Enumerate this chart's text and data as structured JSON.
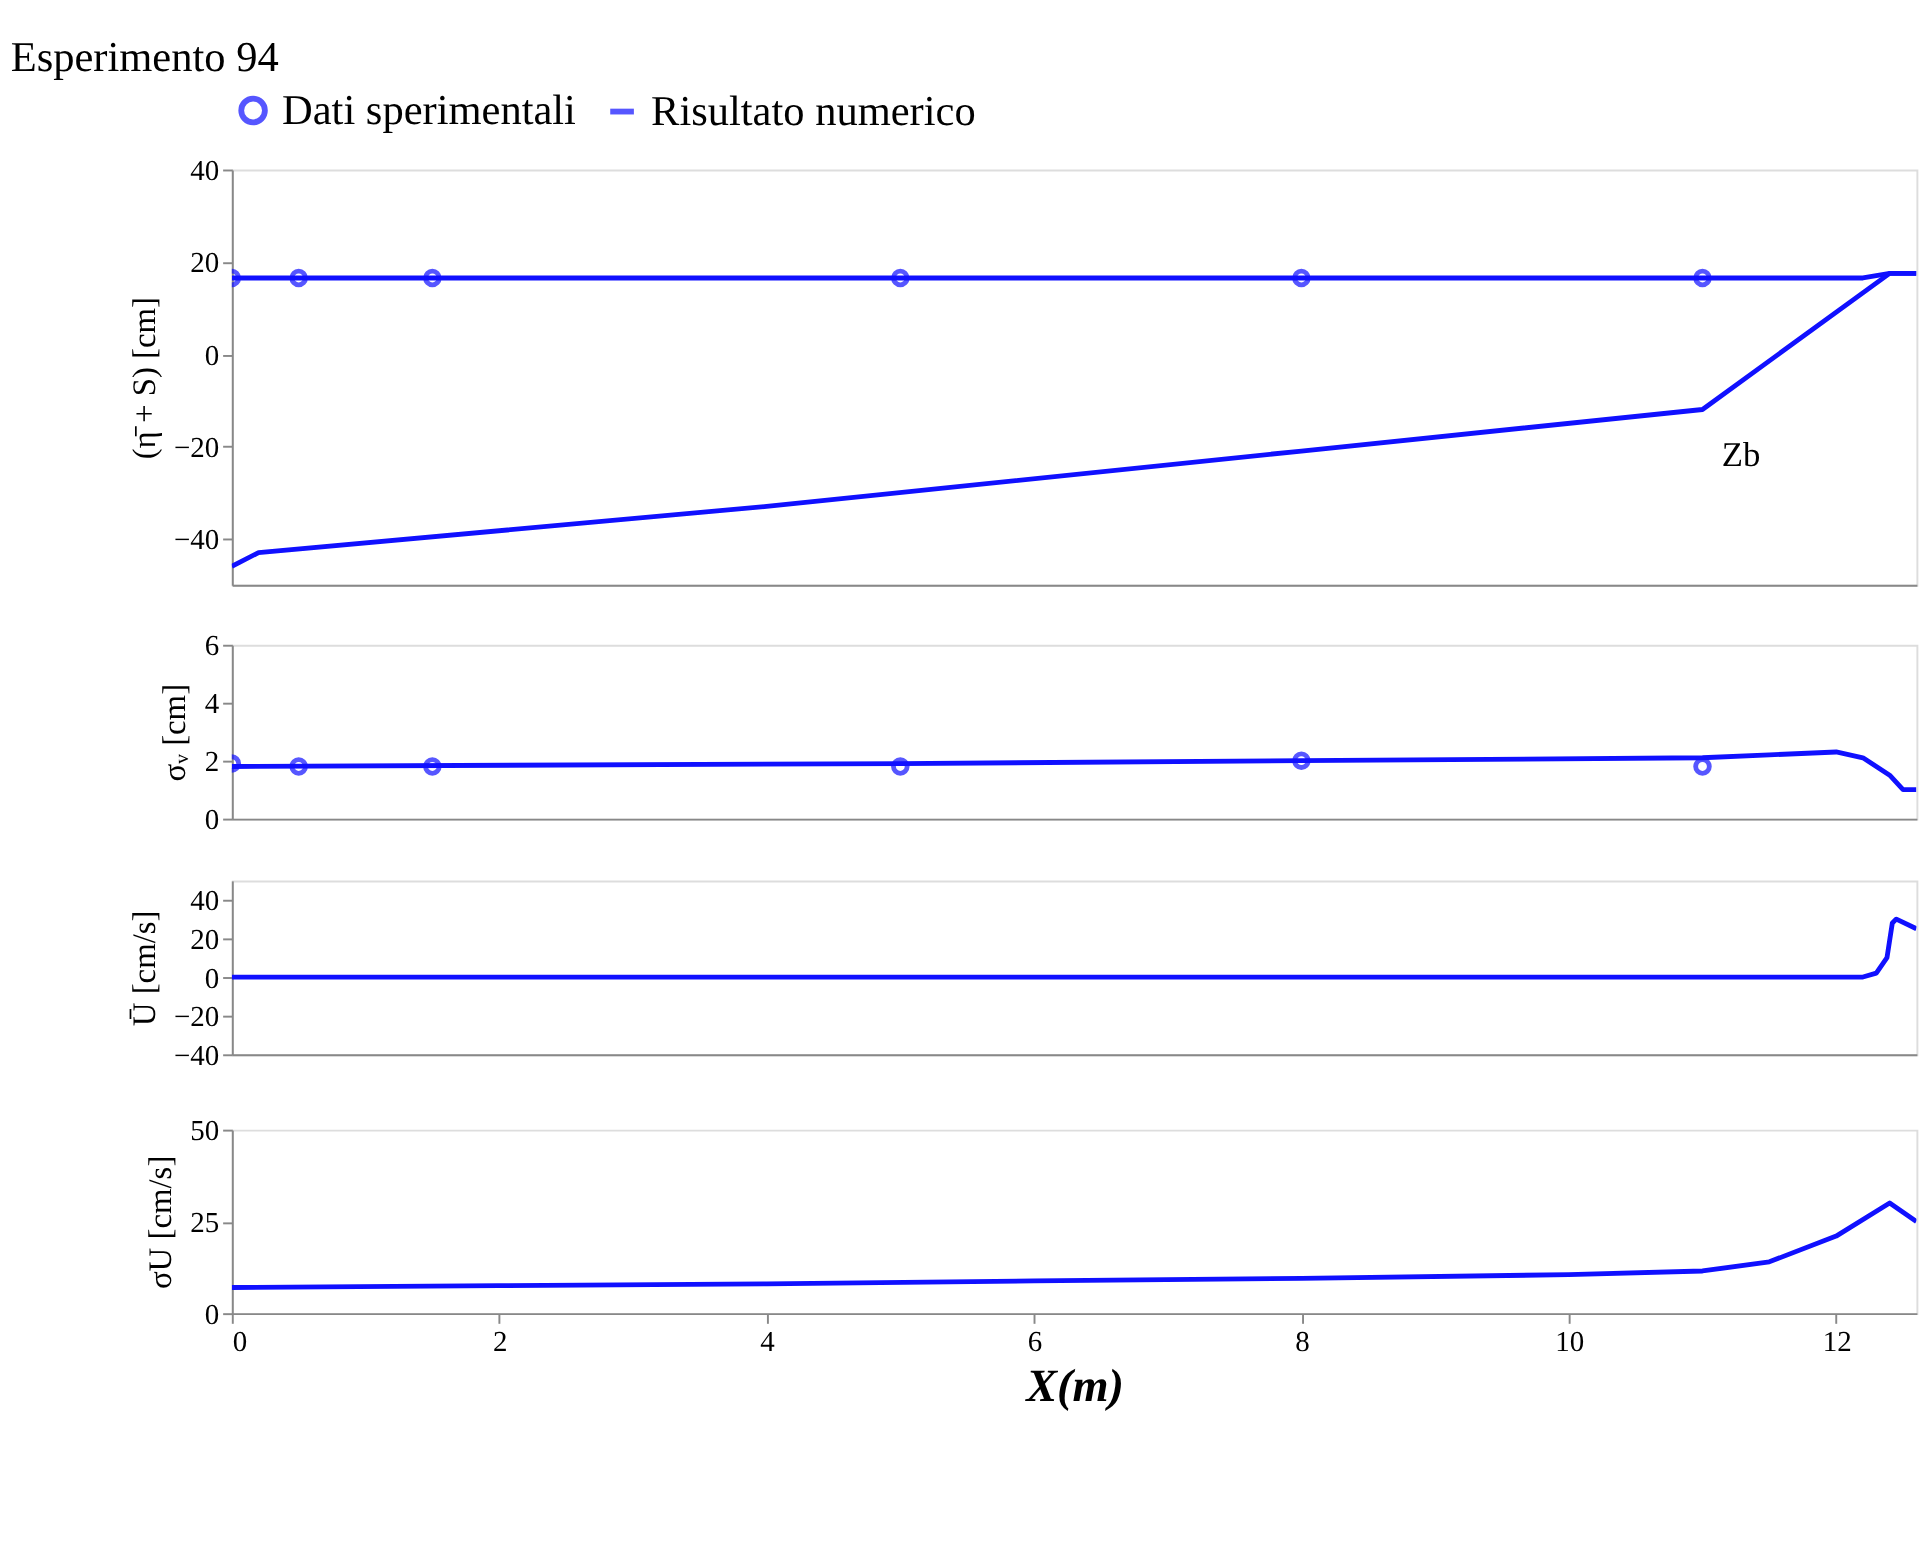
{
  "chart_data": [
    {
      "type": "line",
      "title": "Esperimento 94",
      "ylabel": "(η̄ + S) [cm]",
      "xlim": [
        0,
        12.6
      ],
      "ylim": [
        -50,
        40
      ],
      "yticks": [
        -40,
        -20,
        0,
        20,
        40
      ],
      "tick_labels": "y",
      "grid": false,
      "legend": "top",
      "annotations": [
        {
          "text": "Zb",
          "x": 11,
          "y": -12
        }
      ],
      "series": [
        {
          "name": "Dati sperimentali",
          "type": "scatter",
          "marker": "circle",
          "color": "#1010ff",
          "x": [
            0,
            0.5,
            1.5,
            5,
            8,
            11
          ],
          "values": [
            16.5,
            16.5,
            16.5,
            16.5,
            16.5,
            16.5
          ]
        },
        {
          "name": "Risultato numerico",
          "color": "#1010ff",
          "x": [
            0,
            4,
            8,
            11,
            12.2,
            12.4,
            12.6
          ],
          "values": [
            16.5,
            16.5,
            16.5,
            16.5,
            16.5,
            17.5,
            17.5
          ]
        },
        {
          "color": "#1010ff",
          "x": [
            0,
            0.2,
            4,
            8,
            11,
            12.4,
            12.6
          ],
          "values": [
            -46,
            -43,
            -33,
            -21,
            -12,
            17.5,
            17.5
          ]
        }
      ]
    },
    {
      "type": "line",
      "ylabel": "σᵥ [cm]",
      "xlim": [
        0,
        12.6
      ],
      "ylim": [
        0,
        6
      ],
      "yticks": [
        0,
        2,
        4,
        6
      ],
      "tick_labels": "y",
      "grid": false,
      "series": [
        {
          "type": "scatter",
          "marker": "circle",
          "color": "#1010ff",
          "x": [
            0,
            0.5,
            1.5,
            5,
            8,
            11
          ],
          "values": [
            1.9,
            1.8,
            1.8,
            1.8,
            2.0,
            1.8
          ]
        },
        {
          "color": "#1010ff",
          "x": [
            0,
            5,
            8,
            11,
            11.5,
            12,
            12.2,
            12.4,
            12.5,
            12.6
          ],
          "values": [
            1.8,
            1.9,
            2.0,
            2.1,
            2.2,
            2.3,
            2.1,
            1.5,
            1.0,
            1.0
          ]
        }
      ]
    },
    {
      "type": "line",
      "ylabel": "Ū [cm/s]",
      "xlim": [
        0,
        12.6
      ],
      "ylim": [
        -40,
        50
      ],
      "yticks": [
        -40,
        -20,
        0,
        20,
        40
      ],
      "tick_labels": "y",
      "grid": false,
      "series": [
        {
          "color": "#1010ff",
          "x": [
            0,
            6,
            12.2,
            12.3,
            12.38,
            12.42,
            12.45,
            12.6
          ],
          "values": [
            0,
            0,
            0,
            2,
            10,
            28,
            30,
            25
          ]
        }
      ]
    },
    {
      "type": "line",
      "ylabel": "σU [cm/s]",
      "xlabel": "X(m)",
      "xlim": [
        0,
        12.6
      ],
      "xticks": [
        0,
        2,
        4,
        6,
        8,
        10,
        12
      ],
      "ylim": [
        0,
        50
      ],
      "yticks": [
        0,
        25,
        50
      ],
      "grid": false,
      "series": [
        {
          "color": "#1010ff",
          "x": [
            0,
            2,
            4,
            6,
            8,
            10,
            11,
            11.5,
            12,
            12.4,
            12.5,
            12.6
          ],
          "values": [
            7,
            7.5,
            8,
            8.8,
            9.5,
            10.5,
            11.5,
            14,
            21,
            30,
            27.5,
            25
          ]
        }
      ]
    }
  ]
}
